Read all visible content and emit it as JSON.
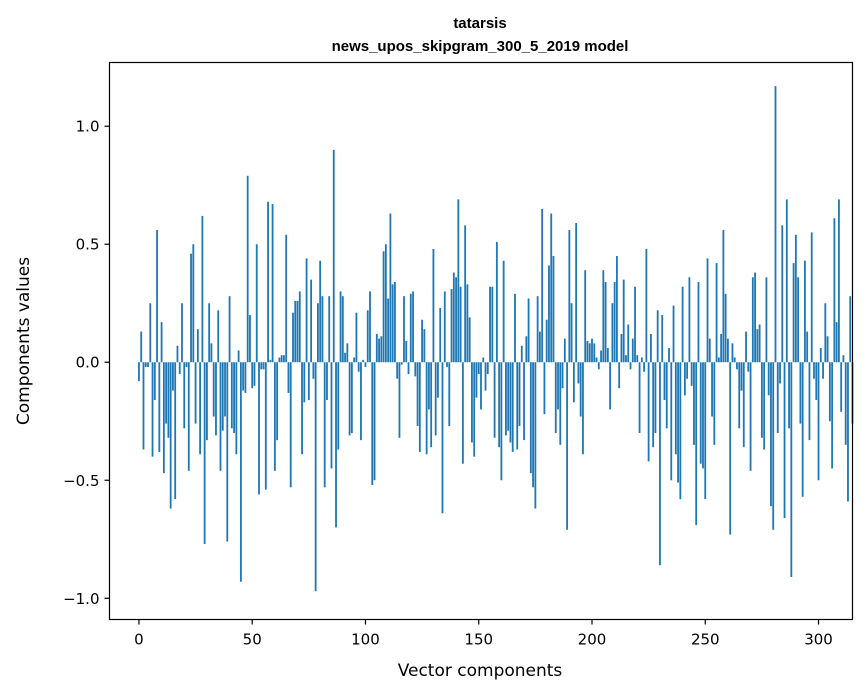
{
  "chart_data": {
    "type": "bar",
    "title": [
      "tatarsis",
      "news_upos_skipgram_300_5_2019 model"
    ],
    "xlabel": "Vector components",
    "ylabel": "Components values",
    "xlim": [
      -13,
      315
    ],
    "ylim": [
      -1.09,
      1.27
    ],
    "xticks": [
      0,
      50,
      100,
      150,
      200,
      250,
      300
    ],
    "xtick_labels": [
      "0",
      "50",
      "100",
      "150",
      "200",
      "250",
      "300"
    ],
    "yticks": [
      -1.0,
      -0.5,
      0.0,
      0.5,
      1.0
    ],
    "ytick_labels": [
      "−1.0",
      "−0.5",
      "0.0",
      "0.5",
      "1.0"
    ],
    "bar_color": "#1f77b4",
    "grid": false,
    "values": [
      -0.08,
      0.13,
      -0.37,
      -0.02,
      -0.02,
      0.25,
      -0.4,
      -0.16,
      0.56,
      -0.38,
      0.17,
      -0.47,
      -0.26,
      -0.32,
      -0.62,
      -0.12,
      -0.58,
      0.07,
      -0.05,
      0.25,
      -0.28,
      -0.02,
      -0.46,
      0.46,
      0.5,
      -0.26,
      0.14,
      -0.39,
      0.62,
      -0.77,
      -0.33,
      0.25,
      0.08,
      -0.23,
      -0.31,
      0.22,
      -0.46,
      -0.29,
      -0.23,
      -0.76,
      0.28,
      -0.28,
      -0.3,
      -0.39,
      0.05,
      -0.93,
      -0.12,
      -0.13,
      0.79,
      0.2,
      -0.11,
      -0.1,
      0.5,
      -0.56,
      -0.03,
      -0.03,
      -0.54,
      0.68,
      0.01,
      0.67,
      -0.46,
      -0.33,
      0.02,
      0.03,
      0.03,
      0.54,
      -0.13,
      -0.53,
      0.21,
      0.26,
      0.26,
      0.3,
      -0.39,
      -0.17,
      0.44,
      -0.16,
      0.35,
      -0.07,
      -0.97,
      0.25,
      0.43,
      0.28,
      -0.53,
      -0.16,
      0.28,
      -0.45,
      0.9,
      -0.7,
      -0.37,
      0.3,
      0.28,
      0.04,
      0.08,
      -0.31,
      -0.3,
      0.02,
      0.21,
      -0.04,
      -0.33,
      0.01,
      -0.02,
      0.22,
      0.3,
      -0.52,
      -0.5,
      0.12,
      0.1,
      0.11,
      0.47,
      0.5,
      0.27,
      0.63,
      0.33,
      0.34,
      -0.07,
      -0.32,
      -0.01,
      0.28,
      0.09,
      -0.05,
      0.29,
      0.3,
      -0.06,
      -0.27,
      -0.38,
      0.18,
      0.14,
      -0.39,
      -0.2,
      -0.36,
      0.48,
      -0.31,
      -0.15,
      0.23,
      -0.64,
      0.3,
      -0.02,
      -0.27,
      0.31,
      0.38,
      0.36,
      0.69,
      0.32,
      -0.43,
      0.58,
      0.33,
      0.19,
      -0.34,
      -0.4,
      -0.15,
      -0.05,
      -0.2,
      0.02,
      -0.12,
      -0.05,
      0.32,
      0.32,
      -0.32,
      0.51,
      -0.36,
      -0.5,
      0.43,
      -0.31,
      -0.29,
      -0.34,
      -0.38,
      0.29,
      -0.37,
      -0.27,
      0.07,
      -0.33,
      0.11,
      0.27,
      -0.47,
      -0.53,
      -0.62,
      0.28,
      0.13,
      0.65,
      -0.22,
      0.18,
      0.41,
      0.63,
      0.45,
      -0.3,
      -0.2,
      -0.35,
      -0.11,
      0.1,
      -0.71,
      0.56,
      0.25,
      -0.17,
      0.59,
      -0.09,
      -0.23,
      -0.39,
      0.39,
      0.09,
      0.08,
      0.1,
      0.08,
      0.02,
      -0.03,
      0.05,
      0.39,
      0.34,
      0.06,
      -0.2,
      0.25,
      0.34,
      0.45,
      -0.11,
      0.12,
      0.35,
      0.03,
      0.16,
      -0.03,
      0.1,
      0.32,
      0.03,
      -0.3,
      0.02,
      -0.04,
      0.48,
      -0.42,
      0.12,
      -0.36,
      -0.3,
      0.22,
      -0.86,
      0.2,
      -0.16,
      -0.28,
      0.06,
      -0.5,
      0.24,
      -0.39,
      -0.51,
      -0.58,
      0.32,
      -0.14,
      -0.07,
      0.36,
      -0.1,
      -0.35,
      -0.69,
      0.34,
      -0.43,
      -0.45,
      -0.58,
      0.44,
      0.1,
      -0.23,
      -0.35,
      0.42,
      0.02,
      0.12,
      0.56,
      0.29,
      0.1,
      -0.73,
      0.08,
      0.02,
      -0.03,
      -0.28,
      -0.12,
      -0.36,
      0.13,
      -0.04,
      -0.46,
      0.36,
      0.38,
      0.14,
      0.16,
      -0.32,
      -0.37,
      0.36,
      -0.14,
      -0.61,
      -0.71,
      1.17,
      -0.3,
      -0.09,
      0.58,
      -0.66,
      0.69,
      -0.28,
      -0.91,
      0.42,
      0.54,
      0.36,
      -0.26,
      -0.57,
      0.43,
      0.13,
      -0.33,
      0.55,
      -0.07,
      -0.16,
      -0.5,
      0.06,
      -0.07,
      0.25,
      0.11,
      -0.25,
      -0.45,
      0.61,
      0.17,
      0.69,
      -0.21,
      0.03,
      -0.35,
      -0.59,
      0.28,
      -0.26
    ]
  }
}
